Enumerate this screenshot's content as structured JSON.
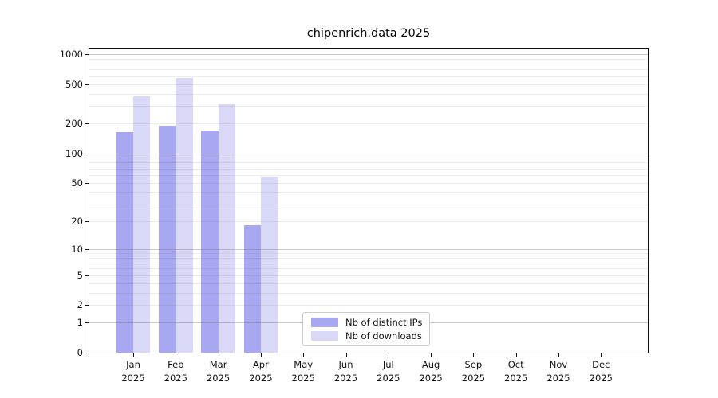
{
  "chart_data": {
    "type": "bar",
    "title": "chipenrich.data 2025",
    "x_months": [
      "Jan",
      "Feb",
      "Mar",
      "Apr",
      "May",
      "Jun",
      "Jul",
      "Aug",
      "Sep",
      "Oct",
      "Nov",
      "Dec"
    ],
    "x_year": "2025",
    "series": [
      {
        "name": "Nb of distinct IPs",
        "key": "distinct-ips",
        "color": "#a7a7f2",
        "values": [
          164,
          190,
          170,
          18,
          0,
          0,
          0,
          0,
          0,
          0,
          0,
          0
        ]
      },
      {
        "name": "Nb of downloads",
        "key": "downloads",
        "color": "#d9d9f7",
        "values": [
          375,
          573,
          312,
          58,
          0,
          0,
          0,
          0,
          0,
          0,
          0,
          0
        ]
      }
    ],
    "y_ticks": [
      0,
      1,
      2,
      5,
      10,
      20,
      50,
      100,
      200,
      500,
      1000
    ],
    "y_scale": "log10(1+value)",
    "ylim": [
      0,
      1140
    ],
    "grid": "horizontal major at powers of 10, minor at 2-9 per decade",
    "legend_position": "bottom-center-left inside plot"
  }
}
